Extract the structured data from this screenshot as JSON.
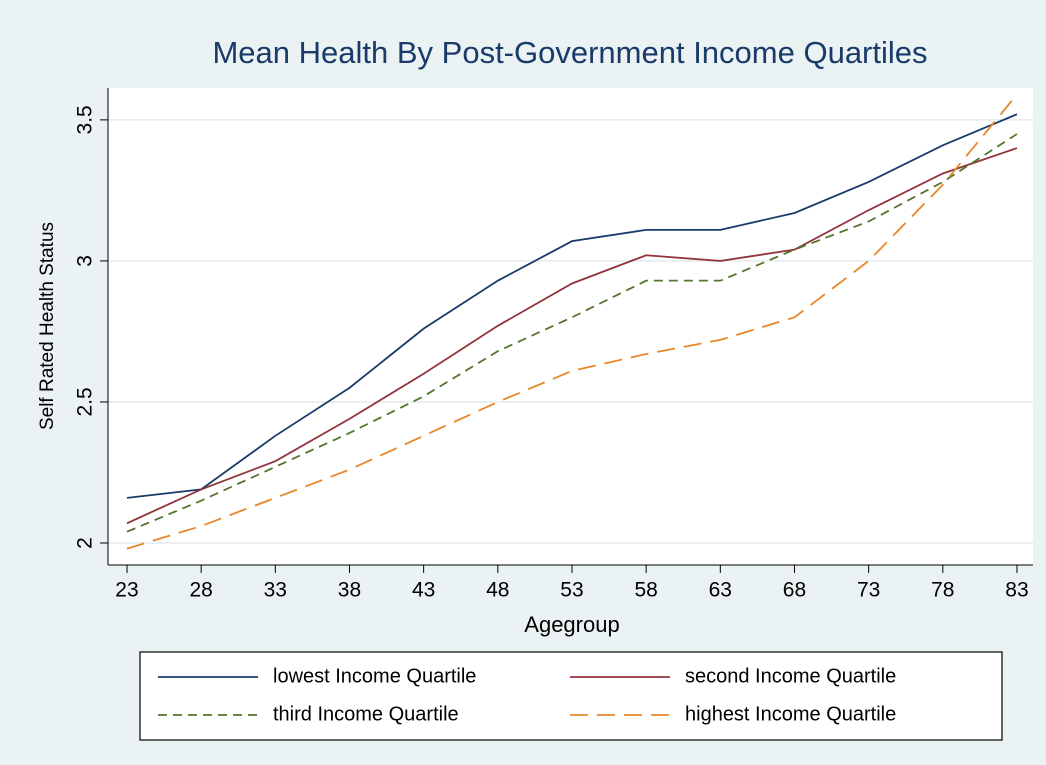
{
  "chart_data": {
    "type": "line",
    "title": "Mean Health By Post-Government Income Quartiles",
    "x_label": "Agegroup",
    "y_label": "Self Rated Health Status",
    "x": [
      23,
      28,
      33,
      38,
      43,
      48,
      53,
      58,
      63,
      68,
      73,
      78,
      83
    ],
    "series": [
      {
        "name": "lowest Income Quartile",
        "color": "#1a3a6a",
        "dash": "solid",
        "values": [
          2.16,
          2.19,
          2.38,
          2.55,
          2.76,
          2.93,
          3.07,
          3.11,
          3.11,
          3.17,
          3.28,
          3.41,
          3.52
        ]
      },
      {
        "name": "second Income Quartile",
        "color": "#90353b",
        "dash": "solid",
        "values": [
          2.07,
          2.19,
          2.29,
          2.44,
          2.6,
          2.77,
          2.92,
          3.02,
          3.0,
          3.04,
          3.18,
          3.31,
          3.4
        ]
      },
      {
        "name": "third Income Quartile",
        "color": "#55752f",
        "dash": "short",
        "values": [
          2.04,
          2.15,
          2.27,
          2.39,
          2.52,
          2.68,
          2.8,
          2.93,
          2.93,
          3.04,
          3.14,
          3.28,
          3.45
        ]
      },
      {
        "name": "highest Income Quartile",
        "color": "#e8872a",
        "dash": "long",
        "values": [
          1.98,
          2.06,
          2.16,
          2.26,
          2.38,
          2.5,
          2.61,
          2.67,
          2.72,
          2.8,
          3.0,
          3.27,
          3.59
        ]
      }
    ],
    "xlim": [
      21.72,
      84.08
    ],
    "ylim": [
      1.922,
      3.613
    ],
    "xticks": [
      23,
      28,
      33,
      38,
      43,
      48,
      53,
      58,
      63,
      68,
      73,
      78,
      83
    ],
    "yticks": [
      2,
      2.5,
      3,
      3.5
    ],
    "grid": true
  }
}
